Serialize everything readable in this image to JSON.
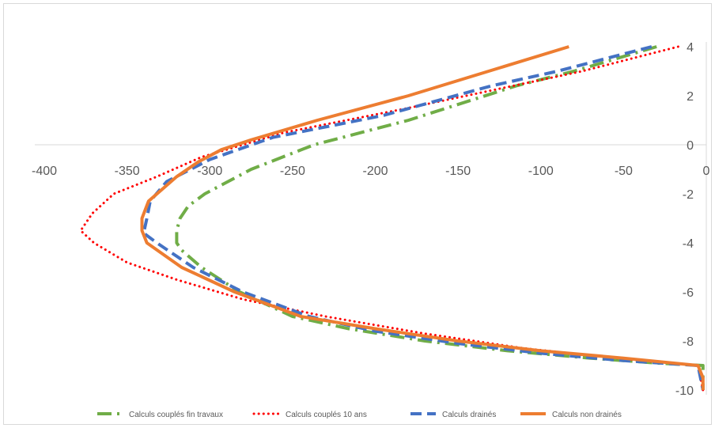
{
  "chart_data": {
    "type": "line",
    "title": "",
    "xlabel": "",
    "ylabel": "",
    "xlim": [
      -400,
      0
    ],
    "ylim": [
      -10,
      4
    ],
    "grid": false,
    "legend_position": "bottom",
    "x_ticks": [
      "-400",
      "-350",
      "-300",
      "-250",
      "-200",
      "-150",
      "-100",
      "-50",
      "0"
    ],
    "y_ticks": [
      "4",
      "2",
      "0",
      "-2",
      "-4",
      "-6",
      "-8",
      "-10"
    ],
    "series": [
      {
        "name": "Calculs couplés fin travaux",
        "color": "#70ad47",
        "dash": "longdashdot",
        "points": [
          [
            -30,
            4
          ],
          [
            -80,
            3
          ],
          [
            -115,
            2.4
          ],
          [
            -180,
            1
          ],
          [
            -237,
            0
          ],
          [
            -275,
            -1
          ],
          [
            -303,
            -2
          ],
          [
            -313,
            -2.5
          ],
          [
            -318,
            -3
          ],
          [
            -320,
            -3.5
          ],
          [
            -320,
            -4
          ],
          [
            -317,
            -4.3
          ],
          [
            -305,
            -5
          ],
          [
            -282,
            -6
          ],
          [
            -250,
            -7
          ],
          [
            -216,
            -7.5
          ],
          [
            -170,
            -8
          ],
          [
            -120,
            -8.4
          ],
          [
            -70,
            -8.7
          ],
          [
            -30,
            -8.9
          ],
          [
            -2,
            -9
          ],
          [
            -2,
            -10
          ]
        ]
      },
      {
        "name": "Calculs couplés 10 ans",
        "color": "#ff0000",
        "dash": "dot",
        "points": [
          [
            -17,
            4
          ],
          [
            -75,
            3
          ],
          [
            -180,
            1.5
          ],
          [
            -255,
            0.5
          ],
          [
            -305,
            -0.5
          ],
          [
            -332,
            -1.3
          ],
          [
            -358,
            -2
          ],
          [
            -371,
            -2.8
          ],
          [
            -378,
            -3.5
          ],
          [
            -370,
            -4
          ],
          [
            -350,
            -4.8
          ],
          [
            -320,
            -5.5
          ],
          [
            -280,
            -6.3
          ],
          [
            -230,
            -7
          ],
          [
            -170,
            -7.7
          ],
          [
            -110,
            -8.3
          ],
          [
            -40,
            -8.8
          ],
          [
            -5,
            -9
          ],
          [
            -2,
            -10
          ]
        ]
      },
      {
        "name": "Calculs drainés",
        "color": "#4472c4",
        "dash": "dash",
        "points": [
          [
            -33,
            4
          ],
          [
            -90,
            3
          ],
          [
            -130,
            2.4
          ],
          [
            -195,
            1.2
          ],
          [
            -262,
            0.3
          ],
          [
            -300,
            -0.6
          ],
          [
            -326,
            -1.5
          ],
          [
            -336,
            -2.3
          ],
          [
            -338,
            -3
          ],
          [
            -340,
            -3.6
          ],
          [
            -332,
            -4
          ],
          [
            -310,
            -5
          ],
          [
            -280,
            -6
          ],
          [
            -240,
            -7
          ],
          [
            -200,
            -7.6
          ],
          [
            -150,
            -8.1
          ],
          [
            -100,
            -8.5
          ],
          [
            -50,
            -8.8
          ],
          [
            -5,
            -9
          ],
          [
            -2,
            -10
          ]
        ]
      },
      {
        "name": "Calculs non drainés",
        "color": "#ed7d31",
        "dash": "solid",
        "points": [
          [
            -83,
            4
          ],
          [
            -180,
            2
          ],
          [
            -235,
            1
          ],
          [
            -275,
            0.2
          ],
          [
            -293,
            -0.2
          ],
          [
            -307,
            -0.7
          ],
          [
            -320,
            -1.3
          ],
          [
            -337,
            -2.3
          ],
          [
            -341,
            -3
          ],
          [
            -341,
            -3.5
          ],
          [
            -338,
            -4
          ],
          [
            -317,
            -5
          ],
          [
            -285,
            -6
          ],
          [
            -245,
            -7
          ],
          [
            -200,
            -7.5
          ],
          [
            -150,
            -8
          ],
          [
            -100,
            -8.4
          ],
          [
            -50,
            -8.7
          ],
          [
            -5,
            -9
          ],
          [
            -2,
            -9.5
          ],
          [
            -2,
            -10
          ]
        ]
      }
    ]
  }
}
